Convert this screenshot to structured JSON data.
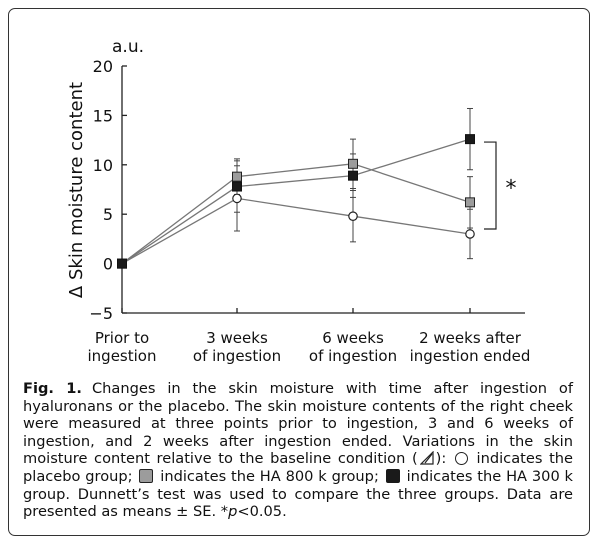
{
  "chart_data": {
    "type": "line",
    "unit_label": "a.u.",
    "ylabel": "Δ Skin moisture content",
    "ylim": [
      -5,
      20
    ],
    "yticks": [
      -5,
      0,
      5,
      10,
      15,
      20
    ],
    "ytick_labels": [
      "−5",
      "0",
      "5",
      "10",
      "15",
      "20"
    ],
    "categories": [
      "Prior to ingestion",
      "3 weeks of ingestion",
      "6 weeks of ingestion",
      "2 weeks after ingestion ended"
    ],
    "category_lines": [
      [
        "Prior to",
        "ingestion"
      ],
      [
        "3 weeks",
        "of ingestion"
      ],
      [
        "6 weeks",
        "of ingestion"
      ],
      [
        "2 weeks after",
        "ingestion ended"
      ]
    ],
    "series": [
      {
        "marker": "open-circle",
        "values": [
          0,
          6.6,
          4.8,
          3.0
        ],
        "errors": [
          0,
          3.3,
          2.6,
          2.5
        ]
      },
      {
        "marker": "grey-square",
        "values": [
          0,
          8.8,
          10.1,
          6.2
        ],
        "errors": [
          0,
          1.8,
          2.5,
          2.6
        ]
      },
      {
        "marker": "black-square",
        "values": [
          0,
          7.8,
          8.9,
          12.6
        ],
        "errors": [
          0,
          2.6,
          2.2,
          3.1
        ]
      }
    ],
    "significance": {
      "label": "*",
      "range": [
        3.5,
        12.3
      ]
    },
    "colors": {
      "line": "#777777",
      "grey_marker": "#9c9c9c",
      "black_marker": "#1a1a1a",
      "axis": "#222222"
    }
  },
  "caption": {
    "label": "Fig. 1.",
    "part1": "Changes in the skin moisture with time after ingestion of hyaluronans or the placebo. The skin moisture contents of the right cheek were measured at three points prior to ingestion, 3 and 6 weeks of ingestion, and 2 weeks after ingestion ended. Variations in the skin moisture content relative to the baseline condition (",
    "part2": "):",
    "part3": "indicates the placebo group;",
    "part4": "indicates the HA 800 k group;",
    "part5": "indicates the HA 300 k group. Dunnett’s test was used to compare the three groups. Data are presented as means ± SE. *",
    "p_symbol": "p",
    "part6": "<0.05."
  }
}
